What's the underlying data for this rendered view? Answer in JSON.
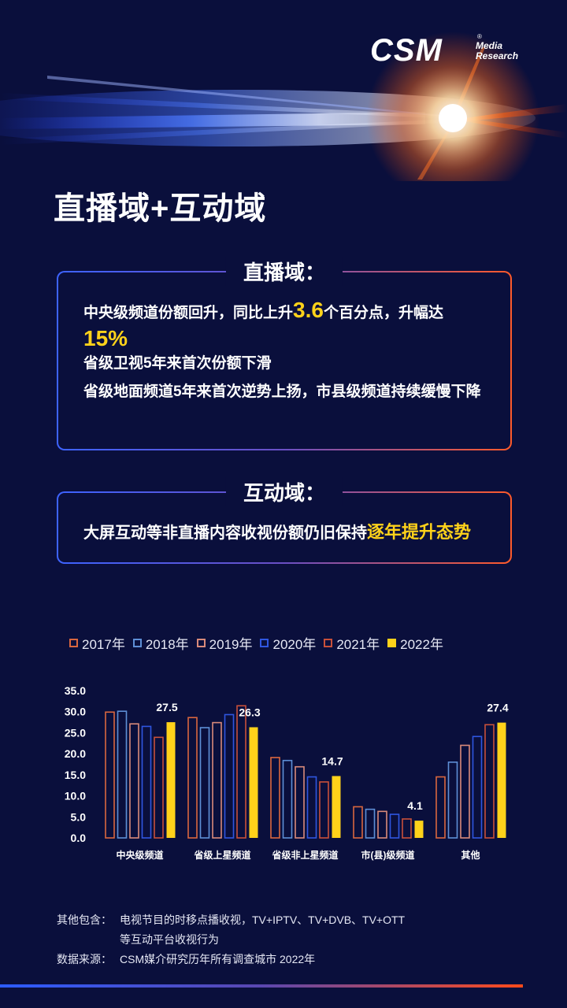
{
  "logo": {
    "brand": "CSM",
    "registered": "®",
    "line1": "Media",
    "line2": "Research"
  },
  "page_title": "直播域+互动域",
  "live_box": {
    "title": "直播域：",
    "line1_a": "中央级频道份额回升，同比上升",
    "line1_num": "3.6",
    "line1_b": "个百分点，升幅达",
    "line1_num2": "15%",
    "line2": "省级卫视5年来首次份额下滑",
    "line3": "省级地面频道5年来首次逆势上扬，市县级频道持续缓慢下降"
  },
  "interactive_box": {
    "title": "互动域：",
    "text_a": "大屏互动等非直播内容收视份额仍旧保持",
    "text_highlight": "逐年提升态势"
  },
  "colors": {
    "background": "#0a0f3c",
    "accent_yellow": "#ffd21a",
    "series_2017": "#d9673f",
    "series_2018": "#5e8fd6",
    "series_2019": "#d98a7a",
    "series_2020": "#2f56e0",
    "series_2021": "#c8503a",
    "series_2022": "#ffd21a"
  },
  "chart_data": {
    "type": "bar",
    "categories": [
      "中央级频道",
      "省级上星频道",
      "省级非上星频道",
      "市(县)级频道",
      "其他"
    ],
    "series": [
      {
        "name": "2017年",
        "values": [
          29.9,
          28.6,
          19.1,
          7.4,
          14.5
        ],
        "style": "outline",
        "color": "#d9673f"
      },
      {
        "name": "2018年",
        "values": [
          30.1,
          26.2,
          18.4,
          6.8,
          18.0
        ],
        "style": "outline",
        "color": "#5e8fd6"
      },
      {
        "name": "2019年",
        "values": [
          27.1,
          27.4,
          16.9,
          6.3,
          22.0
        ],
        "style": "outline",
        "color": "#d98a7a"
      },
      {
        "name": "2020年",
        "values": [
          26.5,
          29.3,
          14.5,
          5.6,
          24.1
        ],
        "style": "outline",
        "color": "#2f56e0"
      },
      {
        "name": "2021年",
        "values": [
          23.9,
          31.4,
          13.3,
          4.5,
          26.9
        ],
        "style": "outline",
        "color": "#c8503a"
      },
      {
        "name": "2022年",
        "values": [
          27.5,
          26.3,
          14.7,
          4.1,
          27.4
        ],
        "style": "filled",
        "color": "#ffd21a"
      }
    ],
    "data_labels": [
      "27.5",
      "26.3",
      "14.7",
      "4.1",
      "27.4"
    ],
    "ylim": [
      0,
      35
    ],
    "yticks": [
      "0.0",
      "5.0",
      "10.0",
      "15.0",
      "20.0",
      "25.0",
      "30.0",
      "35.0"
    ],
    "grid": false,
    "legend_position": "top"
  },
  "notes": {
    "other_label": "其他包含：",
    "other_text_1": "电视节目的时移点播收视，TV+IPTV、TV+DVB、TV+OTT",
    "other_text_2": "等互动平台收视行为",
    "source_label": "数据来源：",
    "source_text": "CSM媒介研究历年所有调查城市 2022年"
  }
}
